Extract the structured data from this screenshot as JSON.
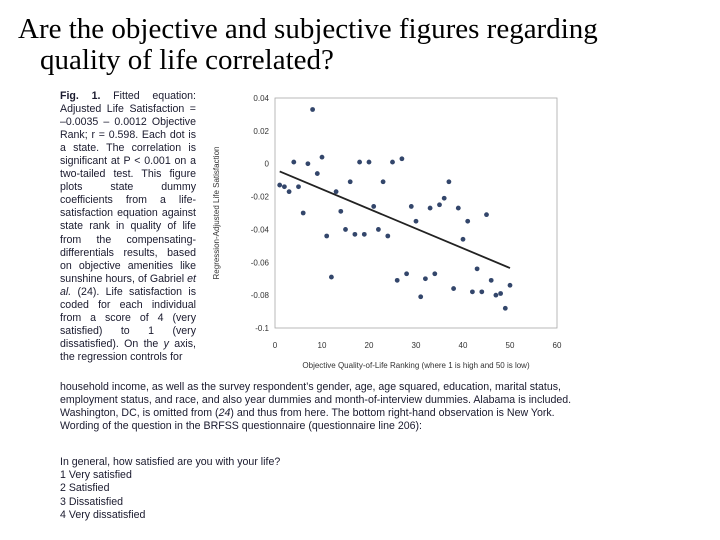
{
  "title": {
    "line1": "Are the objective and subjective figures regarding",
    "line2": "quality of life correlated?"
  },
  "caption": {
    "label": "Fig. 1.",
    "part1": "Fitted equation: Adjusted Life Satisfaction = –0.0035 – 0.0012 Objective Rank; r = 0.598. Each dot is a state. The correlation is significant at P < 0.001 on a two-tailed test. This figure plots state dummy coefficients from a life-satisfaction equation against state rank in quality of life from the compensating-differentials results, based on objective amenities like sunshine hours, of Gabriel",
    "et_al": "et al.",
    "part2": "(24). Life satisfaction is coded for each individual from a score of 4 (very satisfied) to 1 (very dissatisfied). On the",
    "y_axis": "y",
    "part3": "axis, the regression controls for",
    "continuation1": "household income, as well as the survey respondent’s gender, age, age squared, education, marital status, employment status, and race, and also year dummies and month-of-interview dummies. Alabama is included. Washington, DC, is omitted from (",
    "ref24": "24",
    "continuation2": ") and thus from here. The bottom right-hand observation is New York. Wording of the question in the BRFSS questionnaire (questionnaire line 206):"
  },
  "questionnaire": {
    "question": "In general, how satisfied are you with your life?",
    "options": [
      "1 Very satisfied",
      "2 Satisfied",
      "3 Dissatisfied",
      "4 Very dissatisfied"
    ]
  },
  "chart_data": {
    "type": "scatter",
    "xlabel": "Objective Quality-of-Life Ranking (where 1 is high and 50 is low)",
    "ylabel": "Regression-Adjusted Life Satisfaction",
    "xlim": [
      0,
      60
    ],
    "ylim": [
      -0.1,
      0.04
    ],
    "xticks": [
      0,
      10,
      20,
      30,
      40,
      50,
      60
    ],
    "yticks": [
      0.04,
      0.02,
      0,
      -0.02,
      -0.04,
      -0.06,
      -0.08,
      -0.1
    ],
    "ytick_labels": [
      "0.04",
      "0.02",
      "0",
      "-0.02",
      "-0.04",
      "-0.06",
      "-0.08",
      "-0.1"
    ],
    "fit_line": {
      "x": [
        1,
        50
      ],
      "y": [
        -0.0047,
        -0.0635
      ]
    },
    "point_color": "#33466b",
    "points": [
      [
        1,
        -0.013
      ],
      [
        2,
        -0.014
      ],
      [
        3,
        -0.017
      ],
      [
        4,
        0.001
      ],
      [
        5,
        -0.014
      ],
      [
        6,
        -0.03
      ],
      [
        7,
        0.0
      ],
      [
        8,
        0.033
      ],
      [
        9,
        -0.006
      ],
      [
        10,
        0.004
      ],
      [
        11,
        -0.044
      ],
      [
        12,
        -0.069
      ],
      [
        13,
        -0.017
      ],
      [
        14,
        -0.029
      ],
      [
        15,
        -0.04
      ],
      [
        16,
        -0.011
      ],
      [
        17,
        -0.043
      ],
      [
        18,
        0.001
      ],
      [
        19,
        -0.043
      ],
      [
        20,
        0.001
      ],
      [
        21,
        -0.026
      ],
      [
        22,
        -0.04
      ],
      [
        23,
        -0.011
      ],
      [
        24,
        -0.044
      ],
      [
        25,
        0.001
      ],
      [
        26,
        -0.071
      ],
      [
        27,
        0.003
      ],
      [
        28,
        -0.067
      ],
      [
        29,
        -0.026
      ],
      [
        30,
        -0.035
      ],
      [
        31,
        -0.081
      ],
      [
        32,
        -0.07
      ],
      [
        33,
        -0.027
      ],
      [
        34,
        -0.067
      ],
      [
        35,
        -0.025
      ],
      [
        36,
        -0.021
      ],
      [
        37,
        -0.011
      ],
      [
        38,
        -0.076
      ],
      [
        39,
        -0.027
      ],
      [
        40,
        -0.046
      ],
      [
        41,
        -0.035
      ],
      [
        42,
        -0.078
      ],
      [
        43,
        -0.064
      ],
      [
        44,
        -0.078
      ],
      [
        45,
        -0.031
      ],
      [
        46,
        -0.071
      ],
      [
        47,
        -0.08
      ],
      [
        48,
        -0.079
      ],
      [
        49,
        -0.088
      ],
      [
        50,
        -0.074
      ]
    ]
  }
}
